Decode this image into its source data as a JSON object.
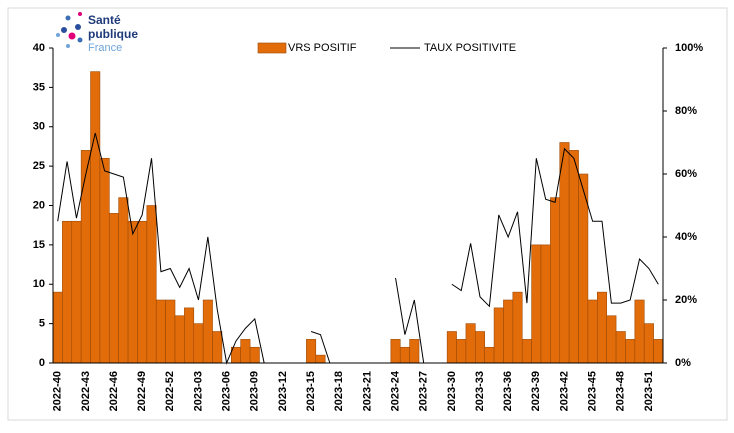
{
  "logo": {
    "line1": "Santé",
    "line2": "publique",
    "line3": "France"
  },
  "chart_data": {
    "type": "bar-line",
    "categories": [
      "2022-40",
      null,
      null,
      "2022-43",
      null,
      null,
      "2022-46",
      null,
      null,
      "2022-49",
      null,
      null,
      "2022-52",
      null,
      null,
      "2023-03",
      null,
      null,
      "2023-06",
      null,
      null,
      "2023-09",
      null,
      null,
      "2023-12",
      null,
      null,
      "2023-15",
      null,
      null,
      "2023-18",
      null,
      null,
      "2023-21",
      null,
      null,
      "2023-24",
      null,
      null,
      "2023-27",
      null,
      null,
      "2023-30",
      null,
      null,
      "2023-33",
      null,
      null,
      "2023-36",
      null,
      null,
      "2023-39",
      null,
      null,
      "2023-42",
      null,
      null,
      "2023-45",
      null,
      null,
      "2023-48",
      null,
      null,
      "2023-51",
      null
    ],
    "series": [
      {
        "name": "VRS POSITIF",
        "type": "bar",
        "color": "#e36c0a",
        "values": [
          9,
          18,
          18,
          27,
          37,
          26,
          19,
          21,
          18,
          18,
          20,
          8,
          8,
          6,
          7,
          5,
          8,
          4,
          0,
          2,
          3,
          2,
          0,
          0,
          0,
          0,
          0,
          3,
          1,
          0,
          0,
          0,
          0,
          0,
          0,
          0,
          3,
          2,
          3,
          0,
          0,
          0,
          4,
          3,
          5,
          4,
          2,
          7,
          8,
          9,
          3,
          15,
          15,
          21,
          28,
          27,
          24,
          8,
          9,
          6,
          4,
          3,
          8,
          5,
          3
        ]
      },
      {
        "name": "TAUX POSITIVITE",
        "type": "line",
        "color": "#000000",
        "axis": "y2",
        "values": [
          45,
          64,
          46,
          60,
          73,
          61,
          60,
          59,
          41,
          47,
          65,
          29,
          30,
          24,
          30,
          20,
          40,
          17,
          0,
          7,
          11,
          14,
          0,
          null,
          null,
          null,
          null,
          10,
          9,
          0,
          null,
          null,
          null,
          null,
          null,
          null,
          27,
          9,
          20,
          0,
          null,
          null,
          25,
          23,
          38,
          21,
          18,
          47,
          40,
          48,
          19,
          65,
          52,
          51,
          68,
          65,
          55,
          45,
          45,
          19,
          19,
          20,
          33,
          30,
          25
        ]
      }
    ],
    "ylim": [
      0,
      40
    ],
    "yticks": [
      0,
      5,
      10,
      15,
      20,
      25,
      30,
      35,
      40
    ],
    "y2lim": [
      0,
      100
    ],
    "y2ticks": [
      {
        "value": 0,
        "label": "0%"
      },
      {
        "value": 20,
        "label": "20%"
      },
      {
        "value": 40,
        "label": "40%"
      },
      {
        "value": 60,
        "label": "60%"
      },
      {
        "value": 80,
        "label": "80%"
      },
      {
        "value": 100,
        "label": "100%"
      }
    ],
    "legend": "top"
  }
}
